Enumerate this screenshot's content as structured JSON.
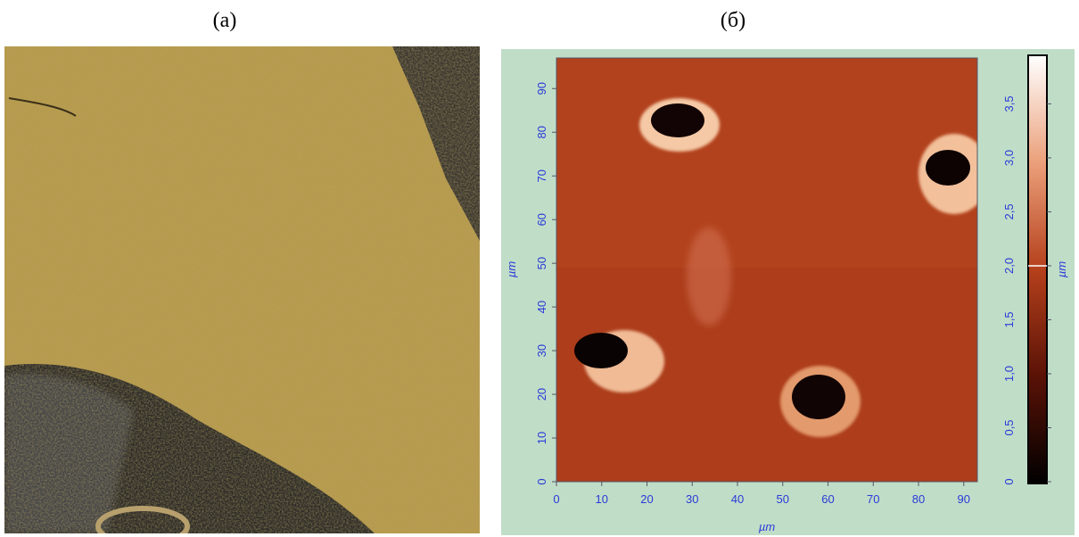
{
  "panels": [
    {
      "label": "(a)"
    },
    {
      "label": "(б)",
      "x_label": "µm",
      "y_label": "µm",
      "xlim": [
        0,
        93
      ],
      "xticks": [
        0,
        10,
        20,
        30,
        40,
        50,
        60,
        70,
        80,
        90
      ],
      "ylim": [
        0,
        97
      ],
      "yticks": [
        0,
        10,
        20,
        30,
        40,
        50,
        60,
        70,
        80,
        90
      ],
      "colorbar": {
        "label": "µm",
        "lim": [
          0,
          3.95
        ],
        "marker": 2,
        "ticks": [
          0,
          {
            "value": 0.5,
            "label": "0,5"
          },
          {
            "value": 1,
            "label": "1,0"
          },
          {
            "value": 1.5,
            "label": "1,5"
          },
          {
            "value": 2,
            "label": "2,0"
          },
          {
            "value": 2.5,
            "label": "2,5"
          },
          {
            "value": 3,
            "label": "3,0"
          },
          {
            "value": 3.5,
            "label": "3,5"
          }
        ]
      }
    }
  ]
}
